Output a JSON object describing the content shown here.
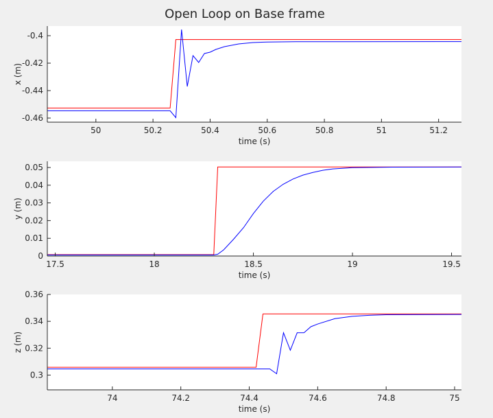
{
  "title": "Open Loop on Base frame",
  "colors": {
    "background": "#f0f0f0",
    "axes_background": "#ffffff",
    "axis": "#262626",
    "reference": "#ff0000",
    "response": "#0000ff"
  },
  "chart_data": [
    {
      "type": "line",
      "xlabel": "time (s)",
      "ylabel": "x (m)",
      "xlim": [
        49.83,
        51.28
      ],
      "ylim": [
        -0.463,
        -0.393
      ],
      "xticks": [
        50,
        50.2,
        50.4,
        50.6,
        50.8,
        51,
        51.2
      ],
      "xtick_labels": [
        "50",
        "50.2",
        "50.4",
        "50.6",
        "50.8",
        "51",
        "51.2"
      ],
      "yticks": [
        -0.46,
        -0.44,
        -0.42,
        -0.4
      ],
      "ytick_labels": [
        "-0.46",
        "-0.44",
        "-0.42",
        "-0.4"
      ],
      "grid": false,
      "series": [
        {
          "color": "#ff0000",
          "points": [
            [
              49.83,
              -0.4527
            ],
            [
              50.26,
              -0.4527
            ],
            [
              50.28,
              -0.4028
            ],
            [
              51.28,
              -0.4028
            ]
          ]
        },
        {
          "color": "#0000ff",
          "points": [
            [
              49.83,
              -0.4547
            ],
            [
              50.26,
              -0.4547
            ],
            [
              50.28,
              -0.4597
            ],
            [
              50.3,
              -0.3955
            ],
            [
              50.32,
              -0.437
            ],
            [
              50.34,
              -0.4145
            ],
            [
              50.36,
              -0.4195
            ],
            [
              50.38,
              -0.413
            ],
            [
              50.4,
              -0.412
            ],
            [
              50.42,
              -0.41
            ],
            [
              50.45,
              -0.408
            ],
            [
              50.5,
              -0.406
            ],
            [
              50.55,
              -0.405
            ],
            [
              50.6,
              -0.4046
            ],
            [
              50.7,
              -0.4044
            ],
            [
              51.28,
              -0.4043
            ]
          ]
        }
      ]
    },
    {
      "type": "line",
      "xlabel": "time (s)",
      "ylabel": "y (m)",
      "xlim": [
        17.46,
        19.55
      ],
      "ylim": [
        0,
        0.0535
      ],
      "xticks": [
        17.5,
        18,
        18.5,
        19,
        19.5
      ],
      "xtick_labels": [
        "17.5",
        "18",
        "18.5",
        "19",
        "19.5"
      ],
      "yticks": [
        0,
        0.01,
        0.02,
        0.03,
        0.04,
        0.05
      ],
      "ytick_labels": [
        "0",
        "0.01",
        "0.02",
        "0.03",
        "0.04",
        "0.05"
      ],
      "grid": false,
      "series": [
        {
          "color": "#ff0000",
          "points": [
            [
              17.46,
              0.0008
            ],
            [
              18.3,
              0.0008
            ],
            [
              18.32,
              0.0503
            ],
            [
              19.55,
              0.0503
            ]
          ]
        },
        {
          "color": "#0000ff",
          "points": [
            [
              17.46,
              0.0006
            ],
            [
              18.3,
              0.0006
            ],
            [
              18.32,
              0.001
            ],
            [
              18.35,
              0.0035
            ],
            [
              18.4,
              0.0095
            ],
            [
              18.45,
              0.016
            ],
            [
              18.5,
              0.024
            ],
            [
              18.55,
              0.031
            ],
            [
              18.6,
              0.0365
            ],
            [
              18.65,
              0.0405
            ],
            [
              18.7,
              0.0435
            ],
            [
              18.75,
              0.0457
            ],
            [
              18.8,
              0.0472
            ],
            [
              18.85,
              0.0484
            ],
            [
              18.9,
              0.0492
            ],
            [
              19.0,
              0.0499
            ],
            [
              19.2,
              0.0502
            ],
            [
              19.55,
              0.0503
            ]
          ]
        }
      ]
    },
    {
      "type": "line",
      "xlabel": "time (s)",
      "ylabel": "z (m)",
      "xlim": [
        73.81,
        75.02
      ],
      "ylim": [
        0.289,
        0.36
      ],
      "xticks": [
        74,
        74.2,
        74.4,
        74.6,
        74.8,
        75
      ],
      "xtick_labels": [
        "74",
        "74.2",
        "74.4",
        "74.6",
        "74.8",
        "75"
      ],
      "yticks": [
        0.3,
        0.32,
        0.34,
        0.36
      ],
      "ytick_labels": [
        "0.3",
        "0.32",
        "0.34",
        "0.36"
      ],
      "grid": false,
      "series": [
        {
          "color": "#ff0000",
          "points": [
            [
              73.81,
              0.3058
            ],
            [
              74.42,
              0.3058
            ],
            [
              74.44,
              0.3455
            ],
            [
              75.02,
              0.3455
            ]
          ]
        },
        {
          "color": "#0000ff",
          "points": [
            [
              73.81,
              0.3046
            ],
            [
              74.46,
              0.3046
            ],
            [
              74.48,
              0.301
            ],
            [
              74.5,
              0.3315
            ],
            [
              74.52,
              0.3185
            ],
            [
              74.54,
              0.3315
            ],
            [
              74.56,
              0.3315
            ],
            [
              74.58,
              0.336
            ],
            [
              74.6,
              0.338
            ],
            [
              74.65,
              0.342
            ],
            [
              74.7,
              0.3437
            ],
            [
              74.75,
              0.3445
            ],
            [
              74.8,
              0.3449
            ],
            [
              75.02,
              0.3451
            ]
          ]
        }
      ]
    }
  ]
}
